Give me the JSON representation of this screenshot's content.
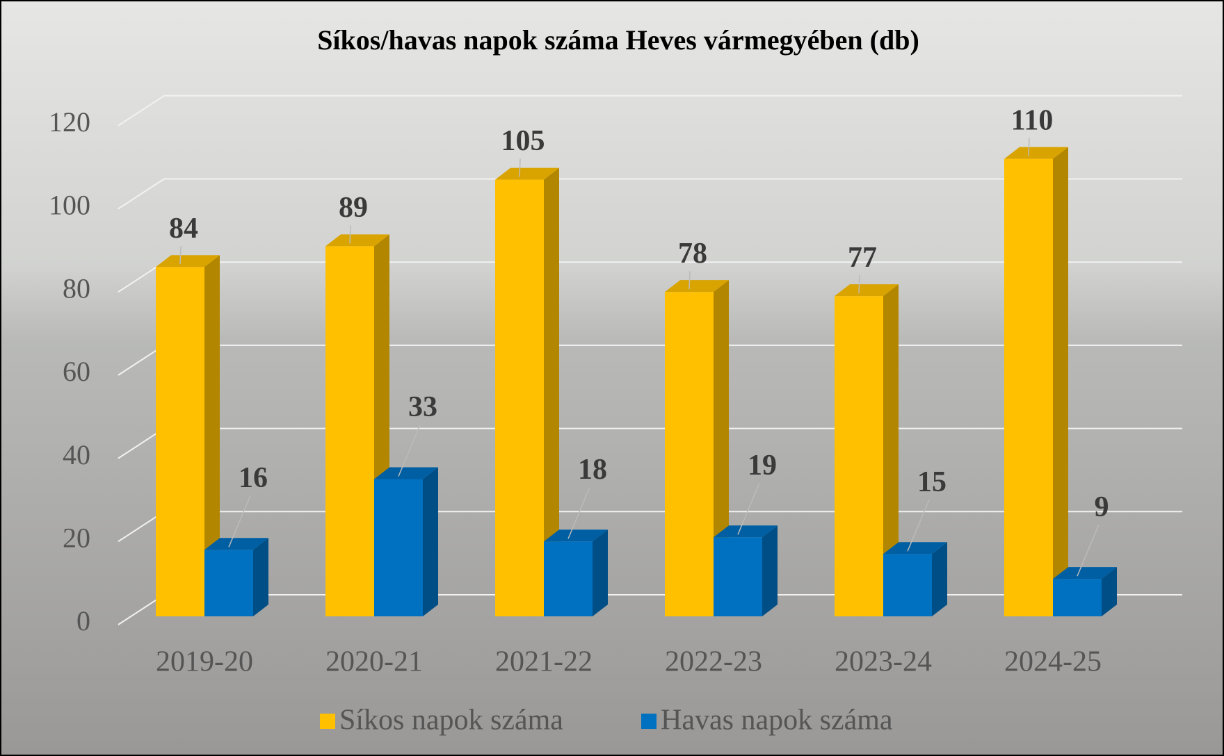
{
  "chart_data": {
    "type": "bar3d",
    "title": "Síkos/havas napok száma Heves vármegyében (db)",
    "categories": [
      "2019-20",
      "2020-21",
      "2021-22",
      "2022-23",
      "2023-24",
      "2024-25"
    ],
    "series": [
      {
        "name": "Síkos napok száma",
        "color": "#FFC000",
        "values": [
          84,
          89,
          105,
          78,
          77,
          110
        ]
      },
      {
        "name": "Havas napok száma",
        "color": "#0070C0",
        "values": [
          16,
          33,
          18,
          19,
          15,
          9
        ]
      }
    ],
    "ylim": [
      0,
      120
    ],
    "yticks": [
      0,
      20,
      40,
      60,
      80,
      100,
      120
    ],
    "grid": true
  }
}
